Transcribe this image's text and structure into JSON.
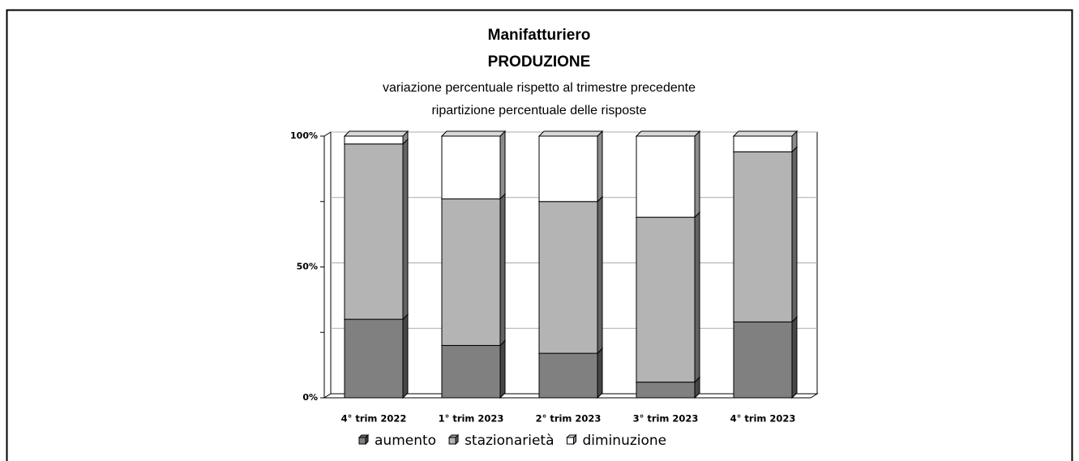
{
  "chart_data": {
    "type": "stacked_bar_3d",
    "title": "Manifatturiero",
    "subtitle": "PRODUZIONE",
    "notes": [
      "variazione percentuale rispetto al trimestre precedente",
      "ripartizione percentuale delle risposte"
    ],
    "categories": [
      "4° trim 2022",
      "1° trim 2023",
      "2° trim 2023",
      "3° trim 2023",
      "4° trim 2023"
    ],
    "series": [
      {
        "name": "aumento",
        "color": "#808080",
        "values": [
          30,
          20,
          17,
          6,
          29
        ]
      },
      {
        "name": "stazionarietà",
        "color": "#b4b4b4",
        "values": [
          67,
          56,
          58,
          63,
          65
        ]
      },
      {
        "name": "diminuzione",
        "color": "#ffffff",
        "values": [
          3,
          24,
          25,
          31,
          6
        ]
      }
    ],
    "ylim": [
      0,
      100
    ],
    "yticks": [
      {
        "value": 0,
        "label": "0%"
      },
      {
        "value": 50,
        "label": "50%"
      },
      {
        "value": 100,
        "label": "100%"
      }
    ],
    "minor_yticks": [
      25,
      75
    ],
    "grid": true,
    "legend": "bottom"
  }
}
